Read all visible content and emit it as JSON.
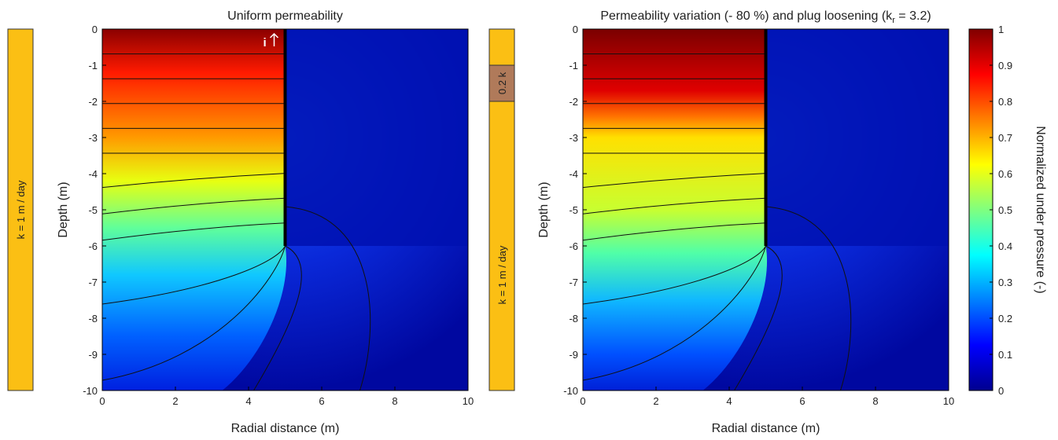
{
  "chart_data": [
    {
      "type": "contour",
      "title": "Uniform permeability",
      "x_label": "Radial distance (m)",
      "y_label": "Depth (m)",
      "xlim": [
        0,
        10
      ],
      "xticks": [
        0,
        2,
        4,
        6,
        8,
        10
      ],
      "ylim": [
        -10,
        0
      ],
      "yticks": [
        0,
        -1,
        -2,
        -3,
        -4,
        -5,
        -6,
        -7,
        -8,
        -9,
        -10
      ],
      "pile": {
        "x": 5,
        "bottom": -6
      },
      "annotation": "i",
      "side_bar": {
        "label": "k = 1 m / day"
      }
    },
    {
      "type": "contour",
      "title_parts": [
        "Permeability variation (- 80 %) and plug loosening (k",
        "r",
        " = 3.2)"
      ],
      "x_label": "Radial distance (m)",
      "y_label": "Depth (m)",
      "xlim": [
        0,
        10
      ],
      "xticks": [
        0,
        2,
        4,
        6,
        8,
        10
      ],
      "ylim": [
        -10,
        0
      ],
      "yticks": [
        0,
        -1,
        -2,
        -3,
        -4,
        -5,
        -6,
        -7,
        -8,
        -9,
        -10
      ],
      "pile": {
        "x": 5,
        "bottom": -6
      },
      "side_bar": {
        "label": "k = 1 m / day",
        "layer": {
          "label": "0.2 k",
          "top": -1,
          "bottom": -2
        }
      },
      "colorbar": {
        "label": "Normalized under pressure (-)",
        "lim": [
          0,
          1
        ],
        "ticks": [
          0,
          0.1,
          0.2,
          0.3,
          0.4,
          0.5,
          0.6,
          0.7,
          0.8,
          0.9,
          1
        ]
      }
    }
  ]
}
